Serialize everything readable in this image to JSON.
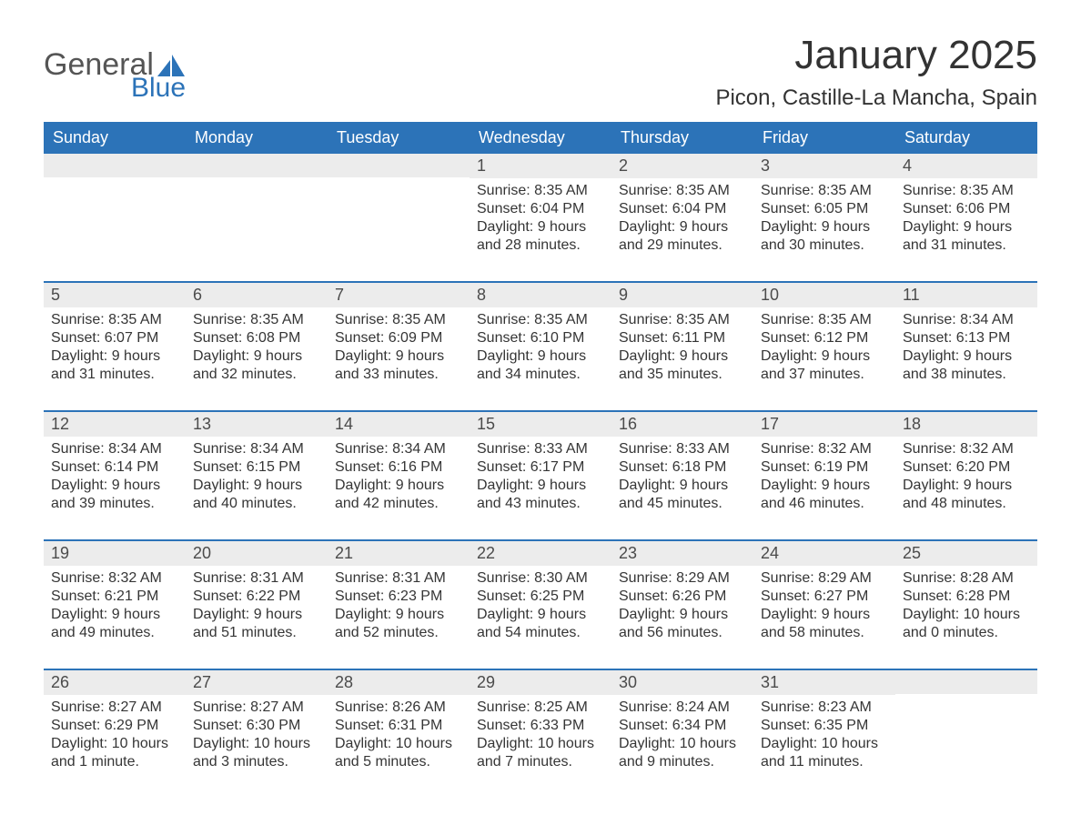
{
  "logo": {
    "general": "General",
    "blue": "Blue"
  },
  "header": {
    "month_title": "January 2025",
    "location": "Picon, Castille-La Mancha, Spain"
  },
  "colors": {
    "header_bg": "#2c73b8",
    "header_text": "#ffffff",
    "daynum_bg": "#ececec",
    "week_divider": "#2c73b8",
    "body_text": "#353535",
    "page_bg": "#ffffff",
    "logo_general": "#555555",
    "logo_blue": "#2c73b8"
  },
  "typography": {
    "month_title_fontsize": 44,
    "location_fontsize": 24,
    "dayhead_fontsize": 18,
    "daynum_fontsize": 18,
    "body_fontsize": 16
  },
  "calendar": {
    "day_headers": [
      "Sunday",
      "Monday",
      "Tuesday",
      "Wednesday",
      "Thursday",
      "Friday",
      "Saturday"
    ],
    "weeks": [
      [
        {
          "day": "",
          "lines": [
            "",
            "",
            "",
            ""
          ]
        },
        {
          "day": "",
          "lines": [
            "",
            "",
            "",
            ""
          ]
        },
        {
          "day": "",
          "lines": [
            "",
            "",
            "",
            ""
          ]
        },
        {
          "day": "1",
          "lines": [
            "Sunrise: 8:35 AM",
            "Sunset: 6:04 PM",
            "Daylight: 9 hours",
            "and 28 minutes."
          ]
        },
        {
          "day": "2",
          "lines": [
            "Sunrise: 8:35 AM",
            "Sunset: 6:04 PM",
            "Daylight: 9 hours",
            "and 29 minutes."
          ]
        },
        {
          "day": "3",
          "lines": [
            "Sunrise: 8:35 AM",
            "Sunset: 6:05 PM",
            "Daylight: 9 hours",
            "and 30 minutes."
          ]
        },
        {
          "day": "4",
          "lines": [
            "Sunrise: 8:35 AM",
            "Sunset: 6:06 PM",
            "Daylight: 9 hours",
            "and 31 minutes."
          ]
        }
      ],
      [
        {
          "day": "5",
          "lines": [
            "Sunrise: 8:35 AM",
            "Sunset: 6:07 PM",
            "Daylight: 9 hours",
            "and 31 minutes."
          ]
        },
        {
          "day": "6",
          "lines": [
            "Sunrise: 8:35 AM",
            "Sunset: 6:08 PM",
            "Daylight: 9 hours",
            "and 32 minutes."
          ]
        },
        {
          "day": "7",
          "lines": [
            "Sunrise: 8:35 AM",
            "Sunset: 6:09 PM",
            "Daylight: 9 hours",
            "and 33 minutes."
          ]
        },
        {
          "day": "8",
          "lines": [
            "Sunrise: 8:35 AM",
            "Sunset: 6:10 PM",
            "Daylight: 9 hours",
            "and 34 minutes."
          ]
        },
        {
          "day": "9",
          "lines": [
            "Sunrise: 8:35 AM",
            "Sunset: 6:11 PM",
            "Daylight: 9 hours",
            "and 35 minutes."
          ]
        },
        {
          "day": "10",
          "lines": [
            "Sunrise: 8:35 AM",
            "Sunset: 6:12 PM",
            "Daylight: 9 hours",
            "and 37 minutes."
          ]
        },
        {
          "day": "11",
          "lines": [
            "Sunrise: 8:34 AM",
            "Sunset: 6:13 PM",
            "Daylight: 9 hours",
            "and 38 minutes."
          ]
        }
      ],
      [
        {
          "day": "12",
          "lines": [
            "Sunrise: 8:34 AM",
            "Sunset: 6:14 PM",
            "Daylight: 9 hours",
            "and 39 minutes."
          ]
        },
        {
          "day": "13",
          "lines": [
            "Sunrise: 8:34 AM",
            "Sunset: 6:15 PM",
            "Daylight: 9 hours",
            "and 40 minutes."
          ]
        },
        {
          "day": "14",
          "lines": [
            "Sunrise: 8:34 AM",
            "Sunset: 6:16 PM",
            "Daylight: 9 hours",
            "and 42 minutes."
          ]
        },
        {
          "day": "15",
          "lines": [
            "Sunrise: 8:33 AM",
            "Sunset: 6:17 PM",
            "Daylight: 9 hours",
            "and 43 minutes."
          ]
        },
        {
          "day": "16",
          "lines": [
            "Sunrise: 8:33 AM",
            "Sunset: 6:18 PM",
            "Daylight: 9 hours",
            "and 45 minutes."
          ]
        },
        {
          "day": "17",
          "lines": [
            "Sunrise: 8:32 AM",
            "Sunset: 6:19 PM",
            "Daylight: 9 hours",
            "and 46 minutes."
          ]
        },
        {
          "day": "18",
          "lines": [
            "Sunrise: 8:32 AM",
            "Sunset: 6:20 PM",
            "Daylight: 9 hours",
            "and 48 minutes."
          ]
        }
      ],
      [
        {
          "day": "19",
          "lines": [
            "Sunrise: 8:32 AM",
            "Sunset: 6:21 PM",
            "Daylight: 9 hours",
            "and 49 minutes."
          ]
        },
        {
          "day": "20",
          "lines": [
            "Sunrise: 8:31 AM",
            "Sunset: 6:22 PM",
            "Daylight: 9 hours",
            "and 51 minutes."
          ]
        },
        {
          "day": "21",
          "lines": [
            "Sunrise: 8:31 AM",
            "Sunset: 6:23 PM",
            "Daylight: 9 hours",
            "and 52 minutes."
          ]
        },
        {
          "day": "22",
          "lines": [
            "Sunrise: 8:30 AM",
            "Sunset: 6:25 PM",
            "Daylight: 9 hours",
            "and 54 minutes."
          ]
        },
        {
          "day": "23",
          "lines": [
            "Sunrise: 8:29 AM",
            "Sunset: 6:26 PM",
            "Daylight: 9 hours",
            "and 56 minutes."
          ]
        },
        {
          "day": "24",
          "lines": [
            "Sunrise: 8:29 AM",
            "Sunset: 6:27 PM",
            "Daylight: 9 hours",
            "and 58 minutes."
          ]
        },
        {
          "day": "25",
          "lines": [
            "Sunrise: 8:28 AM",
            "Sunset: 6:28 PM",
            "Daylight: 10 hours",
            "and 0 minutes."
          ]
        }
      ],
      [
        {
          "day": "26",
          "lines": [
            "Sunrise: 8:27 AM",
            "Sunset: 6:29 PM",
            "Daylight: 10 hours",
            "and 1 minute."
          ]
        },
        {
          "day": "27",
          "lines": [
            "Sunrise: 8:27 AM",
            "Sunset: 6:30 PM",
            "Daylight: 10 hours",
            "and 3 minutes."
          ]
        },
        {
          "day": "28",
          "lines": [
            "Sunrise: 8:26 AM",
            "Sunset: 6:31 PM",
            "Daylight: 10 hours",
            "and 5 minutes."
          ]
        },
        {
          "day": "29",
          "lines": [
            "Sunrise: 8:25 AM",
            "Sunset: 6:33 PM",
            "Daylight: 10 hours",
            "and 7 minutes."
          ]
        },
        {
          "day": "30",
          "lines": [
            "Sunrise: 8:24 AM",
            "Sunset: 6:34 PM",
            "Daylight: 10 hours",
            "and 9 minutes."
          ]
        },
        {
          "day": "31",
          "lines": [
            "Sunrise: 8:23 AM",
            "Sunset: 6:35 PM",
            "Daylight: 10 hours",
            "and 11 minutes."
          ]
        },
        {
          "day": "",
          "lines": [
            "",
            "",
            "",
            ""
          ]
        }
      ]
    ]
  }
}
